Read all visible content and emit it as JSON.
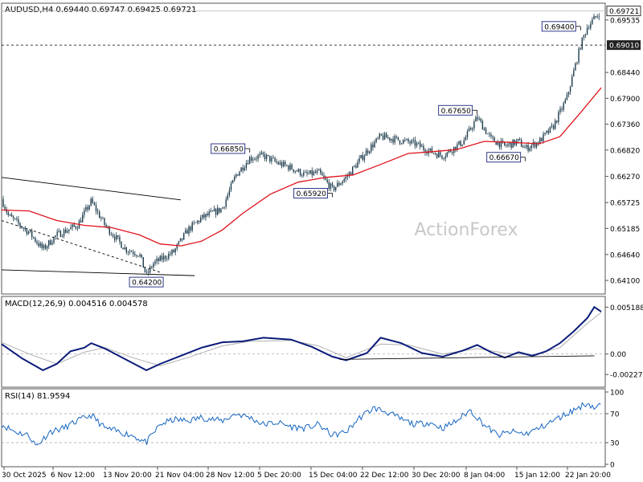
{
  "chart_data": {
    "type": "candlestick",
    "symbol": "AUDUSD",
    "timeframe": "H4",
    "ohlc_header": {
      "open": "0.69440",
      "high": "0.69747",
      "low": "0.69425",
      "close": "0.69721"
    },
    "watermark": "ActionForex",
    "colors": {
      "background": "#ffffff",
      "candle": "#1d3b4c",
      "moving_average": "#e0141c",
      "macd": "#0b1b7a",
      "signal": "#b0b0b0",
      "rsi": "#1565c0",
      "trendline": "#000000",
      "grid": "#a0a0a0"
    },
    "price_panel": {
      "ylim": [
        0.6385,
        0.6985
      ],
      "y_ticks": [
        "0.69535",
        "0.68440",
        "0.67900",
        "0.67360",
        "0.66820",
        "0.66270",
        "0.65725",
        "0.65185",
        "0.64640",
        "0.64100"
      ],
      "current_price": "0.69721",
      "horizontal_level": "0.69010",
      "annotations": [
        {
          "label": "0.64200",
          "price": 0.642,
          "x_date": "20 Nov 2025",
          "box": "below"
        },
        {
          "label": "0.66850",
          "price": 0.6685,
          "x_date": "5 Dec 2025",
          "box": "left"
        },
        {
          "label": "0.65920",
          "price": 0.6592,
          "x_date": "17 Dec 2025",
          "box": "left"
        },
        {
          "label": "0.67650",
          "price": 0.6765,
          "x_date": "7 Jan 2026",
          "box": "left"
        },
        {
          "label": "0.66670",
          "price": 0.6667,
          "x_date": "14 Jan 2026",
          "box": "left"
        },
        {
          "label": "0.69400",
          "price": 0.694,
          "x_date": "22 Jan 2026",
          "box": "left"
        }
      ],
      "price_path": [
        [
          "30 Oct",
          0.658
        ],
        [
          "31 Oct",
          0.6545
        ],
        [
          "3 Nov",
          0.651
        ],
        [
          "5 Nov",
          0.6475
        ],
        [
          "7 Nov",
          0.6505
        ],
        [
          "10 Nov",
          0.6525
        ],
        [
          "12 Nov",
          0.6575
        ],
        [
          "13 Nov",
          0.655
        ],
        [
          "14 Nov",
          0.6525
        ],
        [
          "17 Nov",
          0.6475
        ],
        [
          "19 Nov",
          0.6465
        ],
        [
          "20 Nov",
          0.642
        ],
        [
          "21 Nov",
          0.6445
        ],
        [
          "24 Nov",
          0.647
        ],
        [
          "26 Nov",
          0.6515
        ],
        [
          "28 Nov",
          0.654
        ],
        [
          "1 Dec",
          0.656
        ],
        [
          "3 Dec",
          0.663
        ],
        [
          "5 Dec",
          0.6665
        ],
        [
          "7 Dec",
          0.667
        ],
        [
          "9 Dec",
          0.6655
        ],
        [
          "11 Dec",
          0.6645
        ],
        [
          "13 Dec",
          0.663
        ],
        [
          "15 Dec",
          0.6635
        ],
        [
          "17 Dec",
          0.66
        ],
        [
          "19 Dec",
          0.6625
        ],
        [
          "22 Dec",
          0.668
        ],
        [
          "24 Dec",
          0.671
        ],
        [
          "26 Dec",
          0.6705
        ],
        [
          "29 Dec",
          0.6695
        ],
        [
          "31 Dec",
          0.668
        ],
        [
          "2 Jan",
          0.667
        ],
        [
          "5 Jan",
          0.67
        ],
        [
          "7 Jan",
          0.675
        ],
        [
          "9 Jan",
          0.6705
        ],
        [
          "11 Jan",
          0.669
        ],
        [
          "13 Jan",
          0.67
        ],
        [
          "14 Jan",
          0.6685
        ],
        [
          "16 Jan",
          0.67
        ],
        [
          "18 Jan",
          0.673
        ],
        [
          "20 Jan",
          0.679
        ],
        [
          "22 Jan",
          0.69
        ],
        [
          "23 Jan",
          0.694
        ],
        [
          "25 Jan",
          0.6972
        ]
      ],
      "moving_average_path": [
        [
          "30 Oct",
          0.6557
        ],
        [
          "3 Nov",
          0.6555
        ],
        [
          "7 Nov",
          0.6535
        ],
        [
          "11 Nov",
          0.6525
        ],
        [
          "15 Nov",
          0.652
        ],
        [
          "19 Nov",
          0.6505
        ],
        [
          "22 Nov",
          0.6486
        ],
        [
          "25 Nov",
          0.6482
        ],
        [
          "28 Nov",
          0.6492
        ],
        [
          "1 Dec",
          0.6515
        ],
        [
          "4 Dec",
          0.655
        ],
        [
          "8 Dec",
          0.659
        ],
        [
          "12 Dec",
          0.6615
        ],
        [
          "16 Dec",
          0.6625
        ],
        [
          "20 Dec",
          0.663
        ],
        [
          "24 Dec",
          0.6652
        ],
        [
          "28 Dec",
          0.6675
        ],
        [
          "31 Dec",
          0.6678
        ],
        [
          "4 Jan",
          0.6683
        ],
        [
          "8 Jan",
          0.67
        ],
        [
          "12 Jan",
          0.6698
        ],
        [
          "16 Jan",
          0.6695
        ],
        [
          "19 Jan",
          0.671
        ],
        [
          "22 Jan",
          0.676
        ],
        [
          "25 Jan",
          0.6812
        ]
      ],
      "trendlines": [
        {
          "from": [
            "30 Oct",
            0.6625
          ],
          "to": [
            "25 Nov",
            0.6578
          ],
          "style": "solid"
        },
        {
          "from": [
            "30 Oct",
            0.6535
          ],
          "to": [
            "22 Nov",
            0.6427
          ],
          "style": "dashed"
        },
        {
          "from": [
            "30 Oct",
            0.6432
          ],
          "to": [
            "27 Nov",
            0.642
          ],
          "style": "solid"
        }
      ]
    },
    "macd_panel": {
      "title": "MACD(12,26,9) 0.004516 0.004578",
      "y_ticks": [
        "0.005188",
        "0.00",
        "-0.002273"
      ],
      "ylim": [
        -0.0035,
        0.0062
      ],
      "macd_path": [
        [
          "30 Oct",
          0.0011
        ],
        [
          "2 Nov",
          -0.0005
        ],
        [
          "5 Nov",
          -0.0018
        ],
        [
          "7 Nov",
          -0.0011
        ],
        [
          "9 Nov",
          0.0003
        ],
        [
          "11 Nov",
          0.0007
        ],
        [
          "12 Nov",
          0.0012
        ],
        [
          "14 Nov",
          0.0006
        ],
        [
          "17 Nov",
          -0.0006
        ],
        [
          "20 Nov",
          -0.0018
        ],
        [
          "22 Nov",
          -0.0011
        ],
        [
          "25 Nov",
          -0.0002
        ],
        [
          "28 Nov",
          0.0007
        ],
        [
          "1 Dec",
          0.0013
        ],
        [
          "4 Dec",
          0.0014
        ],
        [
          "7 Dec",
          0.0018
        ],
        [
          "11 Dec",
          0.0016
        ],
        [
          "14 Dec",
          0.0008
        ],
        [
          "17 Dec",
          -0.0003
        ],
        [
          "19 Dec",
          -0.0007
        ],
        [
          "22 Dec",
          0.0001
        ],
        [
          "24 Dec",
          0.0018
        ],
        [
          "27 Dec",
          0.0012
        ],
        [
          "30 Dec",
          0.0001
        ],
        [
          "2 Jan",
          -0.0003
        ],
        [
          "5 Jan",
          0.0004
        ],
        [
          "7 Jan",
          0.001
        ],
        [
          "9 Jan",
          0.0002
        ],
        [
          "11 Jan",
          -0.0004
        ],
        [
          "13 Jan",
          0.0002
        ],
        [
          "15 Jan",
          -0.0002
        ],
        [
          "17 Jan",
          0.0003
        ],
        [
          "19 Jan",
          0.0012
        ],
        [
          "21 Jan",
          0.0025
        ],
        [
          "23 Jan",
          0.004
        ],
        [
          "24 Jan",
          0.0052
        ],
        [
          "25 Jan",
          0.0047
        ]
      ],
      "signal_path": [
        [
          "30 Oct",
          0.0013
        ],
        [
          "3 Nov",
          0.0
        ],
        [
          "7 Nov",
          -0.0011
        ],
        [
          "11 Nov",
          0.0002
        ],
        [
          "14 Nov",
          0.0007
        ],
        [
          "18 Nov",
          -0.0004
        ],
        [
          "22 Nov",
          -0.0013
        ],
        [
          "26 Nov",
          -0.0004
        ],
        [
          "1 Dec",
          0.0009
        ],
        [
          "5 Dec",
          0.0014
        ],
        [
          "11 Dec",
          0.0015
        ],
        [
          "15 Dec",
          0.0009
        ],
        [
          "19 Dec",
          -0.0004
        ],
        [
          "24 Dec",
          0.0011
        ],
        [
          "28 Dec",
          0.001
        ],
        [
          "2 Jan",
          0.0
        ],
        [
          "7 Jan",
          0.0006
        ],
        [
          "11 Jan",
          0.0001
        ],
        [
          "15 Jan",
          -0.0001
        ],
        [
          "19 Jan",
          0.0007
        ],
        [
          "23 Jan",
          0.0034
        ],
        [
          "25 Jan",
          0.0046
        ]
      ],
      "trendline": {
        "from": [
          "18 Dec",
          -0.0006
        ],
        "to": [
          "24 Jan",
          -0.0002
        ]
      }
    },
    "rsi_panel": {
      "title": "RSI(14) 81.9594",
      "y_ticks": [
        "100",
        "70",
        "30",
        "0"
      ],
      "ylim": [
        0,
        100
      ],
      "levels": [
        70,
        30
      ],
      "rsi_path": [
        [
          "30 Oct",
          55
        ],
        [
          "1 Nov",
          45
        ],
        [
          "3 Nov",
          40
        ],
        [
          "4 Nov",
          25
        ],
        [
          "6 Nov",
          45
        ],
        [
          "8 Nov",
          50
        ],
        [
          "10 Nov",
          60
        ],
        [
          "12 Nov",
          68
        ],
        [
          "14 Nov",
          50
        ],
        [
          "16 Nov",
          45
        ],
        [
          "18 Nov",
          40
        ],
        [
          "20 Nov",
          30
        ],
        [
          "22 Nov",
          55
        ],
        [
          "24 Nov",
          62
        ],
        [
          "26 Nov",
          60
        ],
        [
          "28 Nov",
          65
        ],
        [
          "1 Dec",
          60
        ],
        [
          "3 Dec",
          70
        ],
        [
          "5 Dec",
          65
        ],
        [
          "7 Dec",
          55
        ],
        [
          "9 Dec",
          58
        ],
        [
          "11 Dec",
          52
        ],
        [
          "13 Dec",
          50
        ],
        [
          "15 Dec",
          55
        ],
        [
          "17 Dec",
          40
        ],
        [
          "19 Dec",
          45
        ],
        [
          "21 Dec",
          65
        ],
        [
          "23 Dec",
          78
        ],
        [
          "25 Dec",
          72
        ],
        [
          "27 Dec",
          62
        ],
        [
          "29 Dec",
          55
        ],
        [
          "31 Dec",
          58
        ],
        [
          "2 Jan",
          50
        ],
        [
          "4 Jan",
          60
        ],
        [
          "6 Jan",
          75
        ],
        [
          "8 Jan",
          55
        ],
        [
          "10 Jan",
          40
        ],
        [
          "12 Jan",
          45
        ],
        [
          "14 Jan",
          42
        ],
        [
          "16 Jan",
          50
        ],
        [
          "18 Jan",
          60
        ],
        [
          "20 Jan",
          70
        ],
        [
          "22 Jan",
          80
        ],
        [
          "23 Jan",
          85
        ],
        [
          "24 Jan",
          78
        ],
        [
          "25 Jan",
          82
        ]
      ]
    },
    "x_labels": [
      "30 Oct 2025",
      "6 Nov 12:00",
      "13 Nov 20:00",
      "21 Nov 04:00",
      "28 Nov 12:00",
      "5 Dec 20:00",
      "15 Dec 04:00",
      "22 Dec 12:00",
      "30 Dec 20:00",
      "8 Jan 04:00",
      "15 Jan 12:00",
      "22 Jan 20:00"
    ]
  }
}
